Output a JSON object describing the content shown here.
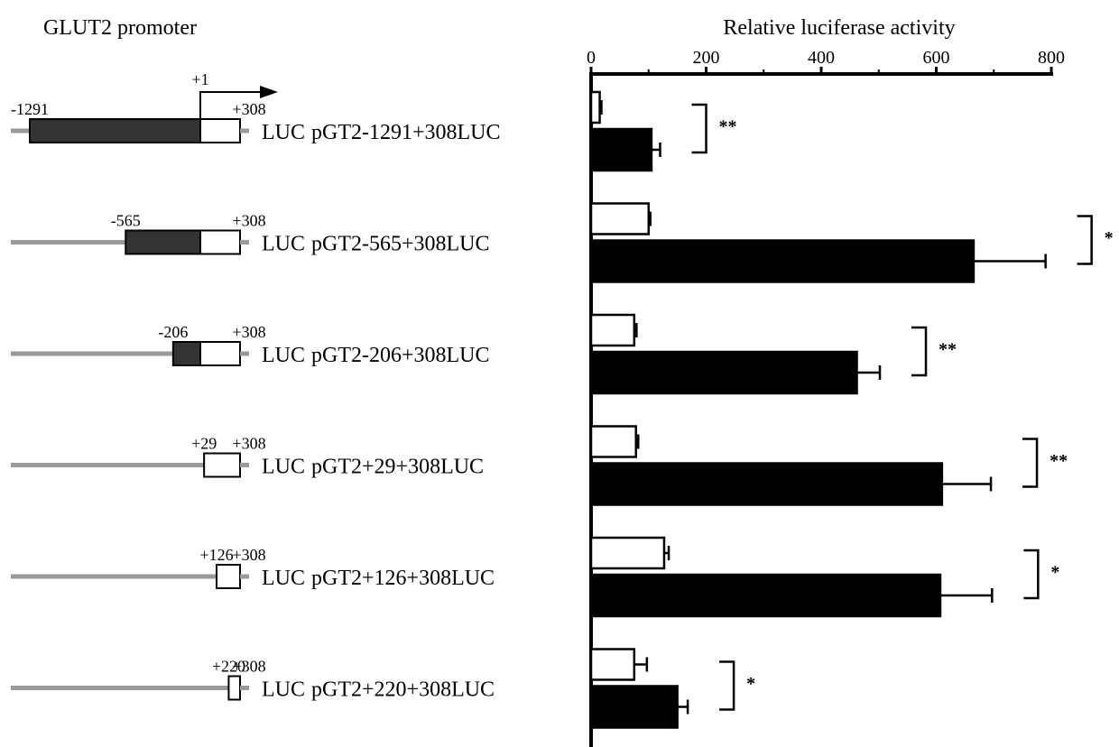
{
  "chart_data": {
    "type": "bar",
    "orientation": "horizontal",
    "title": "Relative luciferase activity",
    "left_panel_title": "GLUT2 promoter",
    "xlim": [
      0,
      800
    ],
    "x_ticks": [
      "0",
      "200",
      "400",
      "600",
      "800"
    ],
    "grid": false,
    "tss_label": "+1",
    "reporter_label": "LUC",
    "categories": [
      "pGT2-1291+308LUC",
      "pGT2-565+308LUC",
      "pGT2-206+308LUC",
      "pGT2+29+308LUC",
      "pGT2+126+308LUC",
      "pGT2+220+308LUC"
    ],
    "constructs": [
      {
        "start_label": "-1291",
        "end_label": "+308",
        "start": -1291,
        "end": 308
      },
      {
        "start_label": "-565",
        "end_label": "+308",
        "start": -565,
        "end": 308
      },
      {
        "start_label": "-206",
        "end_label": "+308",
        "start": -206,
        "end": 308
      },
      {
        "start_label": "+29",
        "end_label": "+308",
        "start": 29,
        "end": 308
      },
      {
        "start_label": "+126",
        "end_label": "+308",
        "start": 126,
        "end": 308
      },
      {
        "start_label": "+220",
        "end_label": "+308",
        "start": 220,
        "end": 308
      }
    ],
    "series": [
      {
        "color": "#ffffff",
        "values": [
          15,
          100,
          75,
          78,
          127,
          75
        ],
        "errors": [
          3,
          3,
          4,
          4,
          8,
          22
        ]
      },
      {
        "color": "#000000",
        "values": [
          105,
          665,
          462,
          610,
          607,
          150
        ],
        "errors": [
          15,
          125,
          40,
          85,
          90,
          18
        ]
      }
    ],
    "significance": [
      "**",
      "*",
      "**",
      "**",
      "*",
      "*"
    ]
  }
}
